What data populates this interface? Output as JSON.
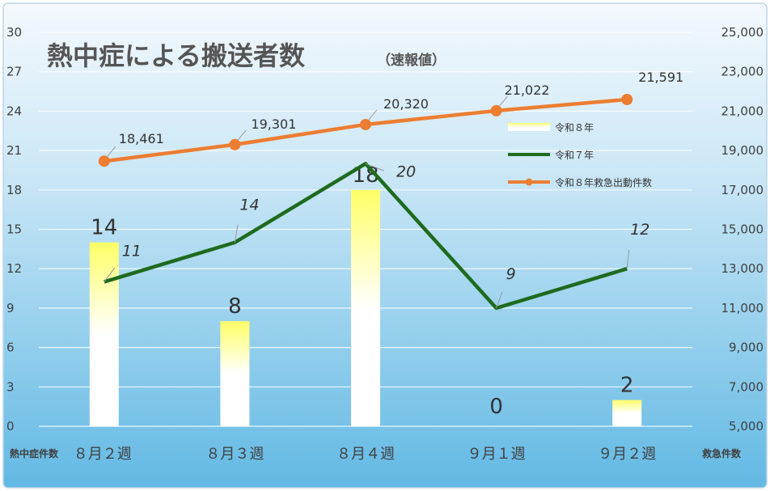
{
  "title": "熱中症による搬送者数",
  "subtitle": "（速報値）",
  "y_axis_left_name": "熱中症件数",
  "y_axis_right_name": "救急件数",
  "chart_data": {
    "type": "bar",
    "title": "熱中症による搬送者数",
    "subtitle": "（速報値）",
    "categories": [
      "８月２週",
      "８月３週",
      "８月４週",
      "９月１週",
      "９月２週"
    ],
    "ylim_left": [
      0,
      30
    ],
    "yticks_left": [
      0,
      3,
      6,
      9,
      12,
      15,
      18,
      21,
      24,
      27,
      30
    ],
    "ylim_right": [
      5000,
      25000
    ],
    "yticks_right": [
      5000,
      7000,
      9000,
      11000,
      13000,
      15000,
      17000,
      19000,
      21000,
      23000,
      25000
    ],
    "yticks_right_labels": [
      "5,000",
      "7,000",
      "9,000",
      "11,000",
      "13,000",
      "15,000",
      "17,000",
      "19,000",
      "21,000",
      "23,000",
      "25,000"
    ],
    "grid": true,
    "legend_position": "right",
    "series": [
      {
        "name": "令和８年",
        "type": "bar",
        "axis": "left",
        "values": [
          14,
          8,
          18,
          0,
          2
        ],
        "labels": [
          "14",
          "8",
          "18",
          "0",
          "2"
        ],
        "color": "#ffff66"
      },
      {
        "name": "令和７年",
        "type": "line",
        "axis": "left",
        "values": [
          11,
          14,
          20,
          9,
          12
        ],
        "labels": [
          "11",
          "14",
          "20",
          "9",
          "12"
        ],
        "color": "#1e6b1e"
      },
      {
        "name": "令和８年救急出動件数",
        "type": "line",
        "axis": "right",
        "values": [
          18461,
          19301,
          20320,
          21022,
          21591
        ],
        "labels": [
          "18,461",
          "19,301",
          "20,320",
          "21,022",
          "21,591"
        ],
        "color": "#ed7d31"
      }
    ]
  },
  "colors": {
    "background_top": "#f4f9fd",
    "background_bottom": "#62b9e4",
    "bar_highlight": "#ffff66",
    "r7_line": "#1e6b1e",
    "dispatch_line": "#ed7d31"
  }
}
